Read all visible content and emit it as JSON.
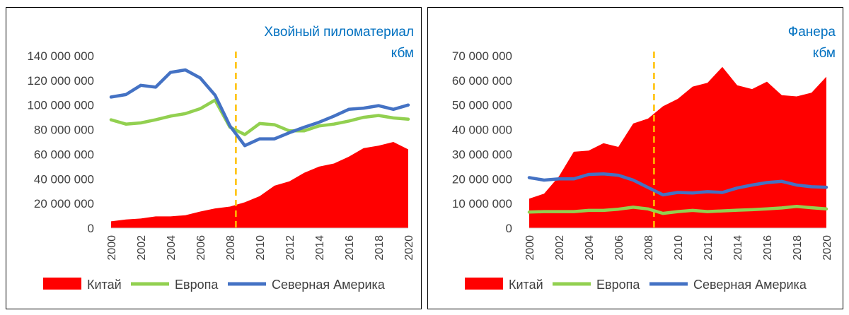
{
  "colors": {
    "china": "#ff0000",
    "europe": "#92d050",
    "north_america": "#4472c4",
    "marker": "#ffc000",
    "title": "#0070c0",
    "text": "#404040"
  },
  "legend": {
    "china": "Китай",
    "europe": "Европа",
    "north_america": "Северная Америка"
  },
  "chart_data": [
    {
      "type": "line",
      "title": "Хвойный пиломатериал",
      "subtitle": "кбм",
      "x": [
        2000,
        2001,
        2002,
        2003,
        2004,
        2005,
        2006,
        2007,
        2008,
        2009,
        2010,
        2011,
        2012,
        2013,
        2014,
        2015,
        2016,
        2017,
        2018,
        2019,
        2020
      ],
      "x_tick_labels": [
        "2000",
        "2002",
        "2004",
        "2006",
        "2008",
        "2010",
        "2012",
        "2014",
        "2016",
        "2018",
        "2020"
      ],
      "ylim": [
        0,
        140000000
      ],
      "y_tick_labels": [
        "0",
        "20 000 000",
        "40 000 000",
        "60 000 000",
        "80 000 000",
        "100 000 000",
        "120 000 000",
        "140 000 000"
      ],
      "series": [
        {
          "name": "Китай",
          "style": "area",
          "values": [
            5500000,
            7000000,
            7800000,
            9500000,
            9500000,
            10500000,
            13500000,
            16000000,
            17500000,
            21000000,
            26000000,
            34500000,
            38000000,
            45000000,
            50000000,
            52500000,
            58000000,
            65000000,
            67000000,
            70000000,
            64000000
          ]
        },
        {
          "name": "Европа",
          "style": "line",
          "values": [
            88000000,
            84500000,
            85500000,
            88000000,
            91000000,
            93000000,
            97000000,
            104000000,
            82000000,
            76000000,
            85000000,
            84000000,
            79000000,
            79000000,
            83000000,
            84500000,
            87000000,
            90000000,
            91500000,
            89500000,
            88500000
          ]
        },
        {
          "name": "Северная Америка",
          "style": "line",
          "values": [
            106500000,
            108500000,
            116000000,
            114500000,
            126500000,
            128500000,
            122000000,
            108000000,
            83000000,
            67000000,
            72500000,
            72500000,
            77500000,
            82000000,
            86000000,
            91000000,
            96500000,
            97500000,
            99500000,
            96500000,
            100000000
          ]
        }
      ],
      "marker_x": 2008.4,
      "grid": false,
      "legend_position": "bottom"
    },
    {
      "type": "line",
      "title": "Фанера",
      "subtitle": "кбм",
      "x": [
        2000,
        2001,
        2002,
        2003,
        2004,
        2005,
        2006,
        2007,
        2008,
        2009,
        2010,
        2011,
        2012,
        2013,
        2014,
        2015,
        2016,
        2017,
        2018,
        2019,
        2020
      ],
      "x_tick_labels": [
        "2000",
        "2002",
        "2004",
        "2006",
        "2008",
        "2010",
        "2012",
        "2014",
        "2016",
        "2018",
        "2020"
      ],
      "ylim": [
        0,
        70000000
      ],
      "y_tick_labels": [
        "0",
        "10 000 000",
        "20 000 000",
        "30 000 000",
        "40 000 000",
        "50 000 000",
        "60 000 000",
        "70 000 000"
      ],
      "series": [
        {
          "name": "Китай",
          "style": "area",
          "values": [
            12000000,
            14000000,
            21000000,
            31000000,
            31500000,
            34500000,
            33000000,
            42500000,
            44500000,
            49500000,
            52500000,
            57500000,
            59000000,
            65500000,
            58000000,
            56500000,
            59500000,
            54000000,
            53500000,
            55000000,
            61500000
          ]
        },
        {
          "name": "Европа",
          "style": "line",
          "values": [
            6500000,
            6700000,
            6700000,
            6700000,
            7200000,
            7200000,
            7700000,
            8500000,
            7800000,
            6000000,
            6700000,
            7200000,
            6700000,
            7000000,
            7300000,
            7500000,
            7800000,
            8200000,
            8800000,
            8300000,
            7800000
          ]
        },
        {
          "name": "Северная Америка",
          "style": "line",
          "values": [
            20500000,
            19500000,
            20000000,
            20000000,
            21800000,
            22000000,
            21500000,
            19500000,
            16500000,
            13500000,
            14500000,
            14300000,
            14800000,
            14500000,
            16300000,
            17500000,
            18500000,
            19000000,
            17500000,
            16800000,
            16600000
          ]
        }
      ],
      "marker_x": 2008.4,
      "grid": false,
      "legend_position": "bottom"
    }
  ]
}
